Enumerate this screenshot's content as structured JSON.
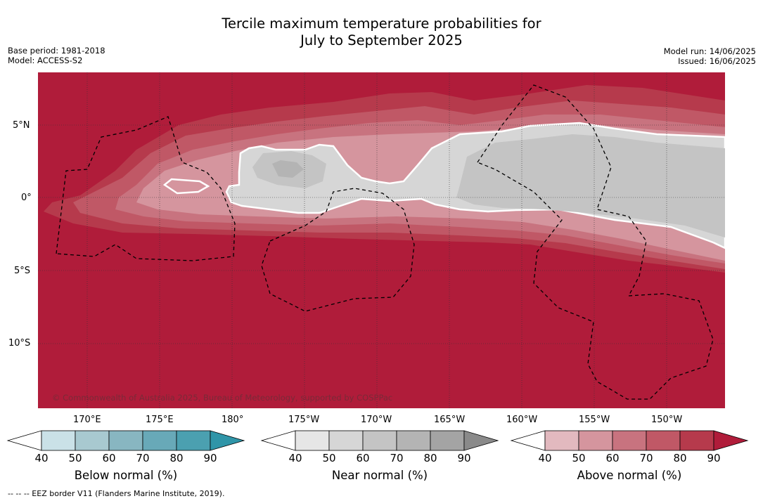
{
  "title_line1": "Tercile maximum temperature probabilities for",
  "title_line2": "July to September 2025",
  "base_period": "Base period: 1981-2018",
  "model": "Model: ACCESS-S2",
  "model_run": "Model run: 14/06/2025",
  "issued": "Issued: 16/06/2025",
  "copyright": "© Commonwealth of Australia 2025, Bureau of Meteorology, supported by COSPPac",
  "lat_ticks": [
    "5°N",
    "0°",
    "5°S",
    "10°S"
  ],
  "lon_ticks": [
    "170°E",
    "175°E",
    "180°",
    "175°W",
    "170°W",
    "165°W",
    "160°W",
    "155°W",
    "150°W"
  ],
  "colorbars": [
    {
      "title": "Below normal (%)",
      "levels": [
        "40",
        "50",
        "60",
        "70",
        "80",
        "90"
      ],
      "colors": [
        "#cae1e7",
        "#a8c9d0",
        "#88b6c1",
        "#68a9b8",
        "#4ba0b0",
        "#2f95a8"
      ]
    },
    {
      "title": "Near normal (%)",
      "levels": [
        "40",
        "50",
        "60",
        "70",
        "80",
        "90"
      ],
      "colors": [
        "#e6e6e6",
        "#d6d6d6",
        "#c4c4c4",
        "#b4b4b4",
        "#a4a4a4",
        "#8a8a8a"
      ]
    },
    {
      "title": "Above normal (%)",
      "levels": [
        "40",
        "50",
        "60",
        "70",
        "80",
        "90"
      ],
      "colors": [
        "#e2b9bf",
        "#d5959e",
        "#c8737f",
        "#c05866",
        "#b63a4c",
        "#b01c3a"
      ]
    }
  ],
  "footer": "--  --  -- EEZ border V11 (Flanders Marine Institute, 2019)."
}
